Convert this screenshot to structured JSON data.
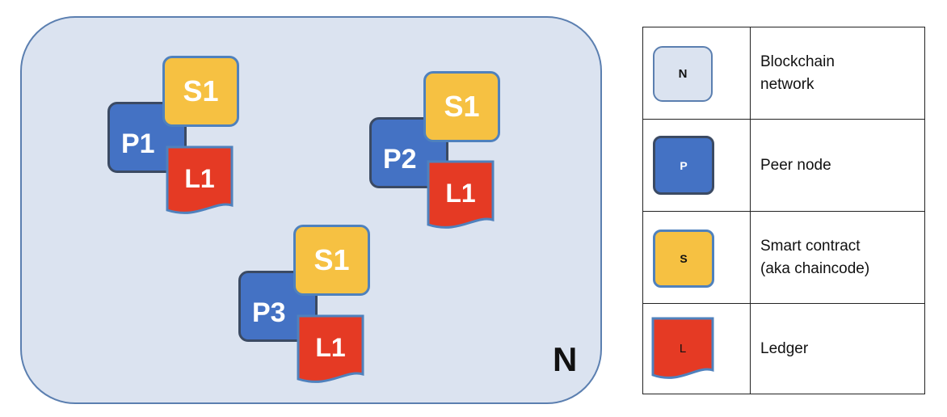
{
  "network": {
    "label": "N"
  },
  "groups": [
    {
      "peer": "P1",
      "contract": "S1",
      "ledger": "L1"
    },
    {
      "peer": "P2",
      "contract": "S1",
      "ledger": "L1"
    },
    {
      "peer": "P3",
      "contract": "S1",
      "ledger": "L1"
    }
  ],
  "legend": [
    {
      "symbol": "N",
      "description_lines": [
        "Blockchain",
        "network"
      ],
      "icon": "network-box-icon"
    },
    {
      "symbol": "P",
      "description_lines": [
        "Peer node"
      ],
      "icon": "peer-node-icon"
    },
    {
      "symbol": "S",
      "description_lines": [
        "Smart contract",
        "(aka chaincode)"
      ],
      "icon": "smart-contract-icon"
    },
    {
      "symbol": "L",
      "description_lines": [
        "Ledger"
      ],
      "icon": "ledger-document-icon"
    }
  ],
  "colors": {
    "network_fill": "#dbe3f0",
    "network_border": "#5b7fb0",
    "peer_fill": "#4472c4",
    "contract_fill": "#f6c142",
    "ledger_fill": "#e53a24"
  }
}
